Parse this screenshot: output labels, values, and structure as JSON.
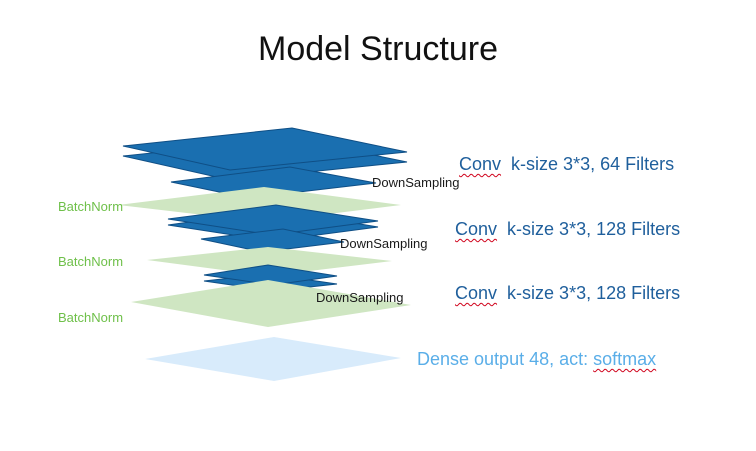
{
  "title": "Model Structure",
  "colors": {
    "conv_layer": "#1a6fb0",
    "conv_edge": "#0f4f86",
    "batchnorm": "#cfe6c2",
    "dense": "#d8ebfb",
    "batchnorm_text": "#6fc04a",
    "conv_text": "#1f5f9c",
    "dense_text": "#5aaee8",
    "spellcheck_underline": "#d0021b"
  },
  "blocks": [
    {
      "conv_word": "Conv",
      "conv_detail": "k-size 3*3, 64 Filters",
      "downsampling": "DownSampling",
      "batchnorm": "BatchNorm"
    },
    {
      "conv_word": "Conv",
      "conv_detail": "k-size 3*3, 128 Filters",
      "downsampling": "DownSampling",
      "batchnorm": "BatchNorm"
    },
    {
      "conv_word": "Conv",
      "conv_detail": "k-size 3*3, 128 Filters",
      "downsampling": "DownSampling",
      "batchnorm": "BatchNorm"
    }
  ],
  "dense": {
    "prefix": "Dense output 48, act: ",
    "activation": "softmax"
  }
}
